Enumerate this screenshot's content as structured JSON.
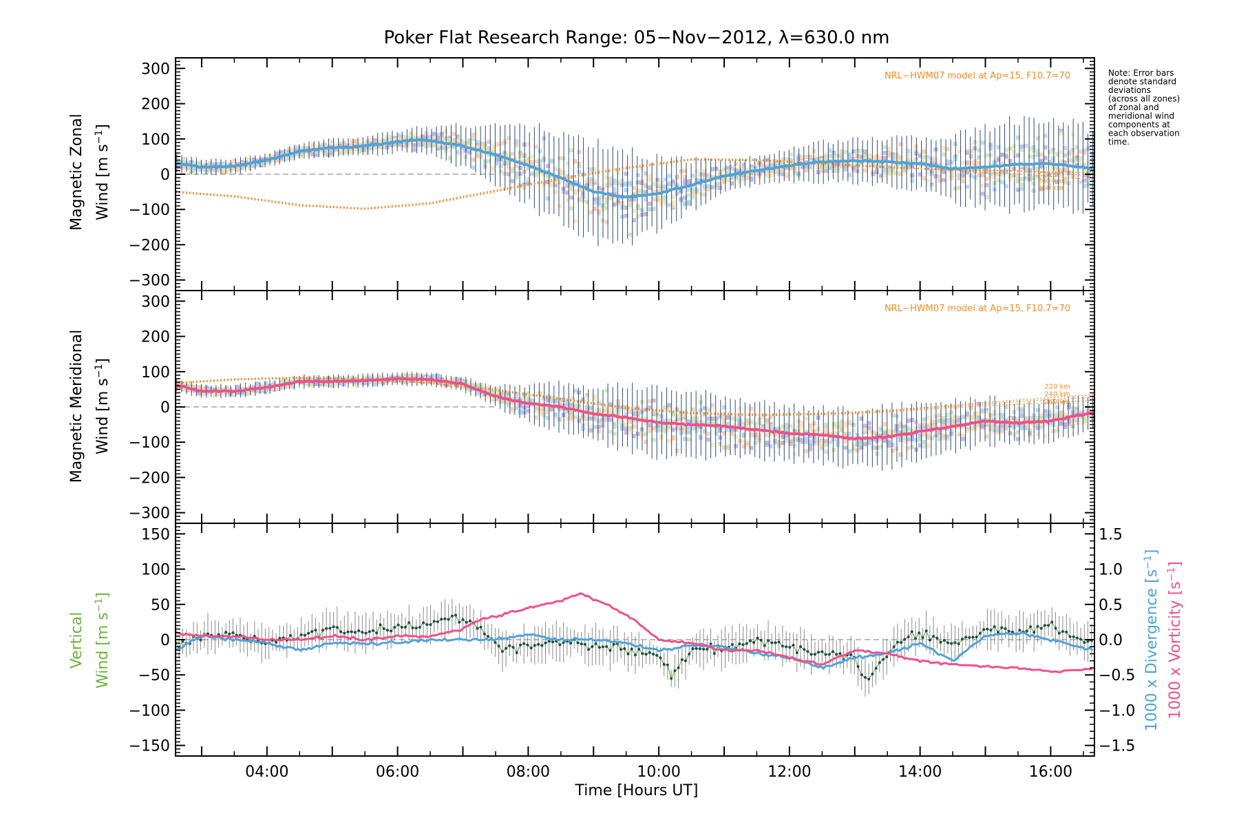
{
  "title": "Poker Flat Research Range: 05−Nov−2012, λ=630.0 nm",
  "note": "Note: Error bars denote standard deviations (across all zones) of zonal and meridional wind components at each observation time.",
  "note_lines": [
    "Note: Error bars",
    "denote standard",
    "deviations",
    "(across all zones)",
    "of zonal and",
    "meridional wind",
    "components at",
    "each observation",
    "time."
  ],
  "colors": {
    "zonal_mean": "#4fa3d8",
    "meridional_mean": "#f0508a",
    "vertical": "#6db33f",
    "divergence": "#4fa3d8",
    "vorticity": "#f0508a",
    "model": "#f28c28",
    "scatter_lavender": "#b4acd9",
    "scatter_peach": "#f8c9a6",
    "scatter_cream": "#f9e3b6",
    "errorbar": "#1e3d6e"
  },
  "xaxis": {
    "label": "Time [Hours UT]",
    "ticks": [
      4,
      6,
      8,
      10,
      12,
      14,
      16
    ],
    "tick_labels": [
      "04:00",
      "06:00",
      "08:00",
      "10:00",
      "12:00",
      "14:00",
      "16:00"
    ],
    "range": [
      2.6,
      16.67
    ]
  },
  "chart_data": [
    {
      "type": "line",
      "panel": "zonal",
      "ylabel_line1": "Magnetic Zonal",
      "ylabel_line2": "Wind [m s",
      "ylim": [
        -330,
        330
      ],
      "yticks": [
        -300,
        -200,
        -100,
        0,
        100,
        200,
        300
      ],
      "yticklabels": [
        "−300",
        "−200",
        "−100",
        "0",
        "100",
        "200",
        "300"
      ],
      "model_label": "NRL−HWM07 model at Ap=15, F10.7=70",
      "model_curve_labels": [
        "220 km",
        "240 km",
        "260 km"
      ],
      "mean": {
        "x": [
          2.6,
          3.0,
          3.5,
          4.0,
          4.5,
          5.0,
          5.5,
          6.0,
          6.3,
          6.6,
          7.0,
          7.5,
          8.0,
          8.5,
          9.0,
          9.5,
          10.0,
          10.5,
          11.0,
          11.5,
          12.0,
          12.5,
          13.0,
          13.5,
          14.0,
          14.5,
          15.0,
          15.5,
          16.0,
          16.67
        ],
        "y": [
          32,
          20,
          22,
          40,
          65,
          75,
          80,
          92,
          98,
          92,
          80,
          55,
          25,
          -10,
          -50,
          -65,
          -55,
          -30,
          -5,
          10,
          25,
          35,
          38,
          35,
          30,
          15,
          20,
          28,
          30,
          15
        ]
      },
      "spread": {
        "x": [
          2.6,
          3.0,
          3.5,
          4.0,
          4.5,
          5.0,
          5.5,
          6.0,
          6.5,
          7.0,
          7.5,
          8.0,
          8.5,
          9.0,
          9.5,
          10.0,
          10.5,
          11.0,
          11.5,
          12.0,
          12.5,
          13.0,
          13.5,
          14.0,
          14.5,
          15.0,
          15.5,
          16.0,
          16.67
        ],
        "y": [
          25,
          22,
          22,
          20,
          22,
          25,
          28,
          30,
          40,
          60,
          85,
          110,
          125,
          135,
          130,
          100,
          70,
          50,
          40,
          45,
          55,
          60,
          70,
          75,
          90,
          110,
          125,
          130,
          110
        ]
      },
      "models": [
        {
          "name": "220 km",
          "x": [
            2.6,
            3.5,
            4.5,
            5.5,
            6.5,
            7.5,
            8.5,
            9.5,
            10.5,
            11.5,
            12.5,
            13.5,
            14.5,
            15.5,
            16.67
          ],
          "y": [
            -52,
            -65,
            -90,
            -100,
            -85,
            -50,
            -15,
            15,
            40,
            38,
            28,
            18,
            12,
            8,
            5
          ]
        },
        {
          "name": "240 km",
          "x": [
            2.6,
            3.5,
            4.5,
            5.5,
            6.5,
            7.5,
            8.5,
            9.5,
            10.5,
            11.5,
            12.5,
            13.5,
            14.5,
            15.5,
            16.67
          ],
          "y": [
            -50,
            -63,
            -88,
            -98,
            -82,
            -47,
            -12,
            18,
            42,
            40,
            30,
            20,
            14,
            10,
            -5
          ]
        },
        {
          "name": "260 km",
          "x": [
            2.6,
            3.5,
            4.5,
            5.5,
            6.5,
            7.5,
            8.5,
            9.5,
            10.5,
            11.5,
            12.5,
            13.5,
            14.5,
            15.5,
            16.67
          ],
          "y": [
            -48,
            -61,
            -86,
            -96,
            -80,
            -45,
            -10,
            20,
            44,
            42,
            32,
            22,
            10,
            0,
            -15
          ]
        }
      ]
    },
    {
      "type": "line",
      "panel": "meridional",
      "ylabel_line1": "Magnetic Meridional",
      "ylabel_line2": "Wind [m s",
      "ylim": [
        -330,
        330
      ],
      "yticks": [
        -300,
        -200,
        -100,
        0,
        100,
        200,
        300
      ],
      "yticklabels": [
        "−300",
        "−200",
        "−100",
        "0",
        "100",
        "200",
        "300"
      ],
      "model_label": "NRL−HWM07 model at Ap=15, F10.7=70",
      "model_curve_labels": [
        "220 km",
        "240 km",
        "260 km"
      ],
      "mean": {
        "x": [
          2.6,
          3.0,
          3.5,
          4.0,
          4.5,
          5.0,
          5.5,
          6.0,
          6.5,
          7.0,
          7.5,
          8.0,
          8.5,
          9.0,
          9.5,
          10.0,
          10.5,
          11.0,
          11.5,
          12.0,
          12.5,
          13.0,
          13.5,
          14.0,
          14.5,
          15.0,
          15.5,
          16.0,
          16.67
        ],
        "y": [
          62,
          45,
          45,
          55,
          72,
          72,
          75,
          80,
          78,
          65,
          30,
          10,
          0,
          -20,
          -30,
          -45,
          -50,
          -55,
          -65,
          -75,
          -80,
          -90,
          -85,
          -70,
          -55,
          -40,
          -45,
          -40,
          -15
        ]
      },
      "spread": {
        "x": [
          2.6,
          3.0,
          3.5,
          4.0,
          4.5,
          5.0,
          5.5,
          6.0,
          6.5,
          7.0,
          7.5,
          8.0,
          8.5,
          9.0,
          9.5,
          10.0,
          10.5,
          11.0,
          11.5,
          12.0,
          12.5,
          13.0,
          13.5,
          14.0,
          14.5,
          15.0,
          15.5,
          16.0,
          16.67
        ],
        "y": [
          20,
          18,
          18,
          18,
          18,
          18,
          18,
          18,
          18,
          20,
          30,
          50,
          70,
          80,
          90,
          95,
          90,
          85,
          80,
          75,
          75,
          80,
          85,
          80,
          75,
          65,
          60,
          55,
          45
        ]
      },
      "models": [
        {
          "name": "220 km",
          "x": [
            2.6,
            3.5,
            4.5,
            5.5,
            6.5,
            7.5,
            8.5,
            9.5,
            10.5,
            11.5,
            12.5,
            13.5,
            14.5,
            15.5,
            16.67
          ],
          "y": [
            70,
            80,
            85,
            80,
            70,
            50,
            25,
            0,
            -15,
            -20,
            -18,
            -10,
            5,
            20,
            35
          ]
        },
        {
          "name": "240 km",
          "x": [
            2.6,
            3.5,
            4.5,
            5.5,
            6.5,
            7.5,
            8.5,
            9.5,
            10.5,
            11.5,
            12.5,
            13.5,
            14.5,
            15.5,
            16.67
          ],
          "y": [
            68,
            78,
            83,
            78,
            68,
            48,
            22,
            -3,
            -18,
            -23,
            -20,
            -12,
            2,
            15,
            28
          ]
        },
        {
          "name": "260 km",
          "x": [
            2.6,
            3.5,
            4.5,
            5.5,
            6.5,
            7.5,
            8.5,
            9.5,
            10.5,
            11.5,
            12.5,
            13.5,
            14.5,
            15.5,
            16.67
          ],
          "y": [
            66,
            76,
            81,
            76,
            66,
            46,
            20,
            -5,
            -20,
            -25,
            -22,
            -15,
            -2,
            8,
            18
          ]
        }
      ]
    },
    {
      "type": "line",
      "panel": "vertical",
      "ylabel_line1": "Vertical",
      "ylabel_line2": "Wind [m s",
      "ylim": [
        -165,
        165
      ],
      "yticks": [
        -150,
        -100,
        -50,
        0,
        50,
        100,
        150
      ],
      "yticklabels": [
        "−150",
        "−100",
        "−50",
        "0",
        "50",
        "100",
        "150"
      ],
      "y2lim": [
        -1.65,
        1.65
      ],
      "y2ticks": [
        -1.5,
        -1.0,
        -0.5,
        0.0,
        0.5,
        1.0,
        1.5
      ],
      "y2ticklabels": [
        "−1.5",
        "−1.0",
        "−0.5",
        "0.0",
        "0.5",
        "1.0",
        "1.5"
      ],
      "y2label_divergence": "1000 x Divergence [s",
      "y2label_vorticity": "1000 x Vorticity [s",
      "vertical_wind": {
        "x": [
          2.6,
          3.0,
          3.5,
          4.0,
          4.5,
          5.0,
          5.5,
          6.0,
          6.5,
          7.0,
          7.3,
          7.6,
          8.0,
          8.5,
          9.0,
          9.5,
          10.0,
          10.2,
          10.5,
          11.0,
          11.5,
          12.0,
          12.5,
          13.0,
          13.2,
          13.4,
          13.7,
          14.0,
          14.5,
          15.0,
          15.5,
          16.0,
          16.67
        ],
        "y": [
          -10,
          5,
          10,
          -5,
          5,
          15,
          10,
          20,
          25,
          30,
          15,
          -15,
          -10,
          -5,
          -10,
          -15,
          -20,
          -55,
          -15,
          -10,
          0,
          -10,
          -20,
          -25,
          -60,
          -30,
          0,
          10,
          -10,
          15,
          10,
          20,
          -5
        ]
      },
      "divergence": {
        "x": [
          2.6,
          3.0,
          3.5,
          4.0,
          4.5,
          5.0,
          5.5,
          6.0,
          6.5,
          7.0,
          7.5,
          8.0,
          8.5,
          9.0,
          9.5,
          10.0,
          10.5,
          11.0,
          11.5,
          12.0,
          12.5,
          13.0,
          13.5,
          14.0,
          14.5,
          15.0,
          15.5,
          16.0,
          16.67
        ],
        "y": [
          -0.15,
          0.05,
          0.0,
          -0.05,
          -0.15,
          -0.05,
          -0.05,
          -0.05,
          0.0,
          0.0,
          0.0,
          0.08,
          0.0,
          0.0,
          -0.05,
          -0.15,
          -0.08,
          -0.1,
          -0.2,
          -0.25,
          -0.4,
          -0.25,
          -0.2,
          -0.05,
          -0.3,
          0.05,
          0.1,
          0.0,
          -0.15
        ]
      },
      "vorticity": {
        "x": [
          2.6,
          3.0,
          3.5,
          4.0,
          4.5,
          5.0,
          5.5,
          6.0,
          6.5,
          7.0,
          7.3,
          7.6,
          8.0,
          8.5,
          8.8,
          9.2,
          9.6,
          10.0,
          10.5,
          11.0,
          11.5,
          12.0,
          12.5,
          13.0,
          13.5,
          14.0,
          14.5,
          15.0,
          15.5,
          16.0,
          16.67
        ],
        "y": [
          0.1,
          0.05,
          0.05,
          0.0,
          0.0,
          0.05,
          0.0,
          0.05,
          0.05,
          0.15,
          0.3,
          0.35,
          0.45,
          0.55,
          0.65,
          0.5,
          0.3,
          0.0,
          -0.05,
          -0.15,
          -0.15,
          -0.25,
          -0.35,
          -0.15,
          -0.2,
          -0.3,
          -0.35,
          -0.38,
          -0.4,
          -0.45,
          -0.42
        ]
      }
    }
  ]
}
